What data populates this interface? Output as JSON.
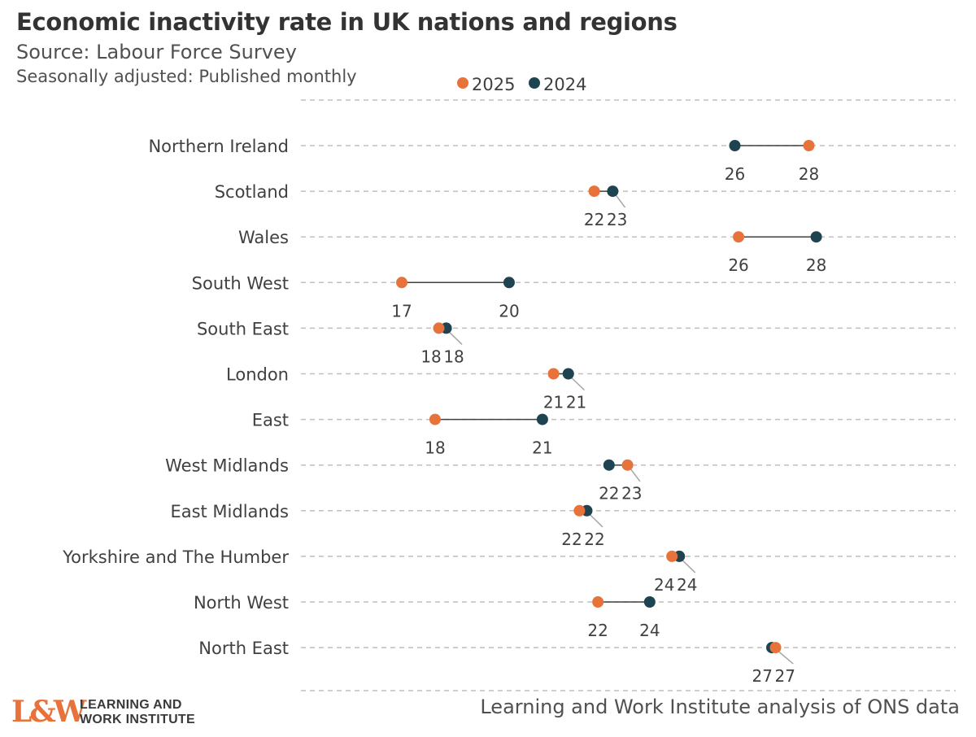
{
  "header": {
    "title": "Economic inactivity rate in UK nations and regions",
    "subtitle": "Source: Labour Force Survey",
    "note": "Seasonally adjusted: Published monthly"
  },
  "footer": {
    "source": "Learning and Work Institute analysis of ONS data",
    "logo_mark": "L&W",
    "logo_line1": "LEARNING AND",
    "logo_line2": "WORK INSTITUTE"
  },
  "colors": {
    "series_2025": "#e8733a",
    "series_2024": "#1f4451",
    "connector": "#404040",
    "grid": "#bfbfbf"
  },
  "chart_data": {
    "type": "dumbbell",
    "orientation": "horizontal",
    "xlim": [
      14,
      29
    ],
    "grid": "dashed horizontal row lines",
    "legend_position": "top-center",
    "categories": [
      "Northern Ireland",
      "Scotland",
      "Wales",
      "South West",
      "South East",
      "London",
      "East",
      "West Midlands",
      "East Midlands",
      "Yorkshire and The Humber",
      "North West",
      "North East"
    ],
    "series": [
      {
        "name": "2025",
        "values": [
          28.0,
          22.2,
          26.1,
          17.0,
          18.0,
          21.1,
          17.9,
          23.1,
          21.8,
          24.3,
          22.3,
          27.1
        ]
      },
      {
        "name": "2024",
        "values": [
          26.0,
          22.7,
          28.2,
          19.9,
          18.2,
          21.5,
          20.8,
          22.6,
          22.0,
          24.5,
          23.7,
          27.0
        ]
      }
    ],
    "data_labels": [
      {
        "v2025": "28",
        "v2024": "26"
      },
      {
        "v2025": "22",
        "v2024": "23"
      },
      {
        "v2025": "26",
        "v2024": "28"
      },
      {
        "v2025": "17",
        "v2024": "20"
      },
      {
        "v2025": "18",
        "v2024": "18"
      },
      {
        "v2025": "21",
        "v2024": "21"
      },
      {
        "v2025": "18",
        "v2024": "21"
      },
      {
        "v2025": "23",
        "v2024": "22"
      },
      {
        "v2025": "22",
        "v2024": "22"
      },
      {
        "v2025": "24",
        "v2024": "24"
      },
      {
        "v2025": "22",
        "v2024": "24"
      },
      {
        "v2025": "27",
        "v2024": "27"
      }
    ]
  }
}
